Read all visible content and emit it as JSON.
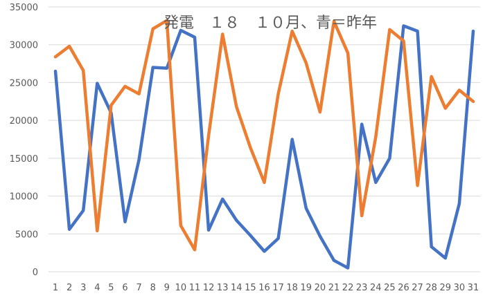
{
  "chart_data": {
    "type": "line",
    "title": "発電　１８　１０月、青＝昨年",
    "xlabel": "",
    "ylabel": "",
    "ylim": [
      0,
      35000
    ],
    "yticks": [
      0,
      5000,
      10000,
      15000,
      20000,
      25000,
      30000,
      35000
    ],
    "grid": true,
    "legend": "none",
    "categories": [
      "1",
      "2",
      "3",
      "4",
      "5",
      "6",
      "7",
      "8",
      "9",
      "10",
      "11",
      "12",
      "13",
      "14",
      "15",
      "16",
      "17",
      "18",
      "19",
      "20",
      "21",
      "22",
      "23",
      "24",
      "25",
      "26",
      "27",
      "28",
      "29",
      "30",
      "31"
    ],
    "series": [
      {
        "color": "#4472c4",
        "values": [
          26500,
          5600,
          8100,
          24900,
          21000,
          6600,
          14800,
          27000,
          26900,
          31900,
          31000,
          5500,
          9600,
          6800,
          4800,
          2700,
          4400,
          17500,
          8400,
          4700,
          1500,
          500,
          19500,
          11800,
          15000,
          32500,
          31800,
          3300,
          1800,
          9000,
          31800
        ]
      },
      {
        "color": "#ed7d31",
        "values": [
          28400,
          29800,
          26600,
          5400,
          22000,
          24500,
          23500,
          32100,
          33200,
          6100,
          2900,
          18000,
          31400,
          21800,
          16400,
          11800,
          23500,
          31800,
          27600,
          21100,
          33100,
          28900,
          7400,
          17800,
          32000,
          30500,
          11400,
          25800,
          21600,
          24000,
          22500
        ]
      }
    ]
  }
}
